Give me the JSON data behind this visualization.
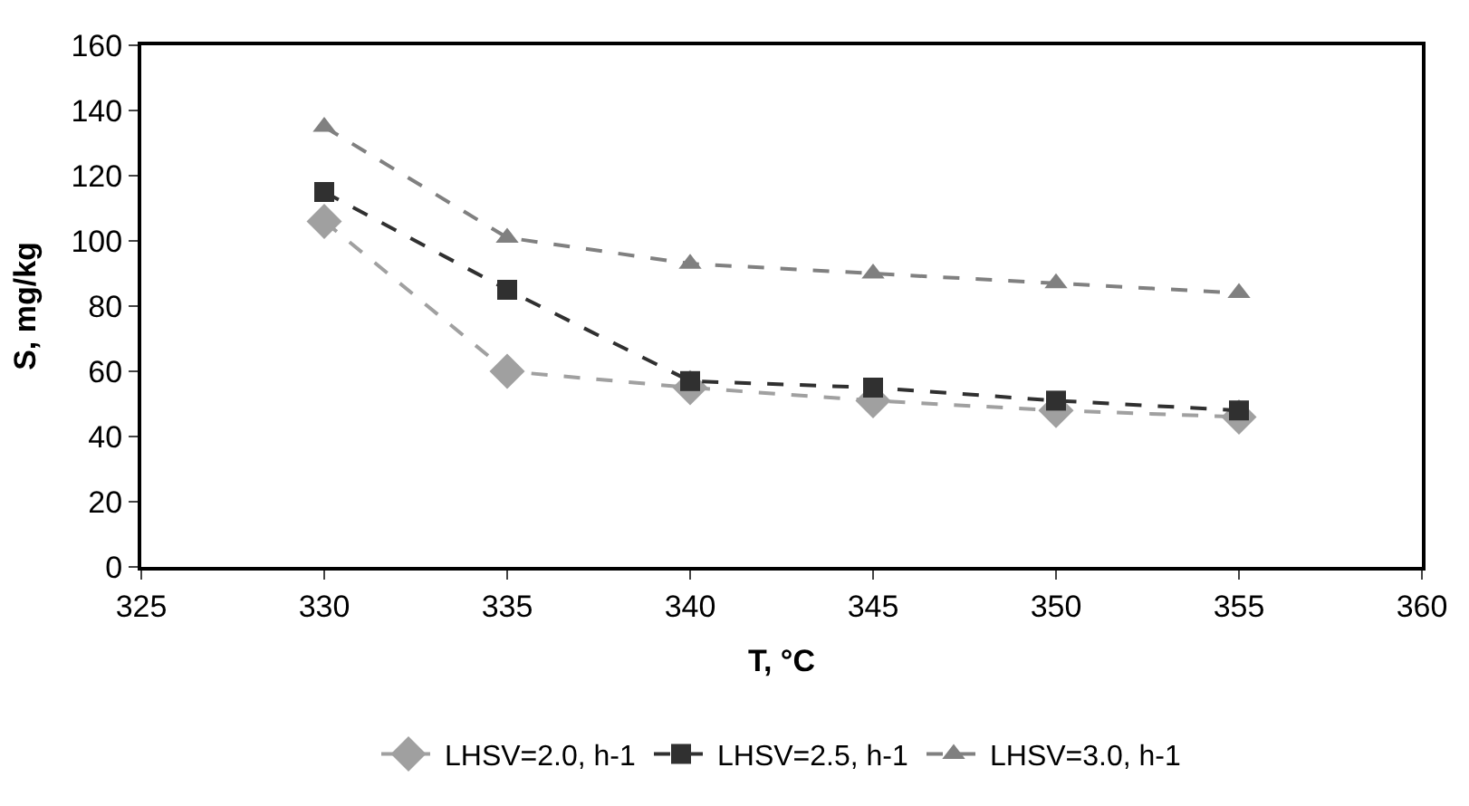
{
  "chart_data": {
    "type": "line",
    "xlabel": "T, °C",
    "ylabel": "S, mg/kg",
    "x": [
      330,
      335,
      340,
      345,
      350,
      355
    ],
    "series": [
      {
        "name": "LHSV=2.0, h-1",
        "color": "#a0a0a0",
        "marker": "diamond",
        "values": [
          106,
          60,
          55,
          51,
          48,
          46
        ]
      },
      {
        "name": "LHSV=2.5, h-1",
        "color": "#303030",
        "marker": "square",
        "values": [
          115,
          85,
          57,
          55,
          51,
          48
        ]
      },
      {
        "name": "LHSV=3.0, h-1",
        "color": "#808080",
        "marker": "triangle",
        "values": [
          135,
          101,
          93,
          90,
          87,
          84
        ]
      }
    ],
    "xlim": [
      325,
      360
    ],
    "xticks": [
      325,
      330,
      335,
      340,
      345,
      350,
      355,
      360
    ],
    "ylim": [
      0,
      160
    ],
    "yticks": [
      0,
      20,
      40,
      60,
      80,
      100,
      120,
      140,
      160
    ],
    "grid": false,
    "legend": "bottom",
    "line_style": "dashed"
  }
}
